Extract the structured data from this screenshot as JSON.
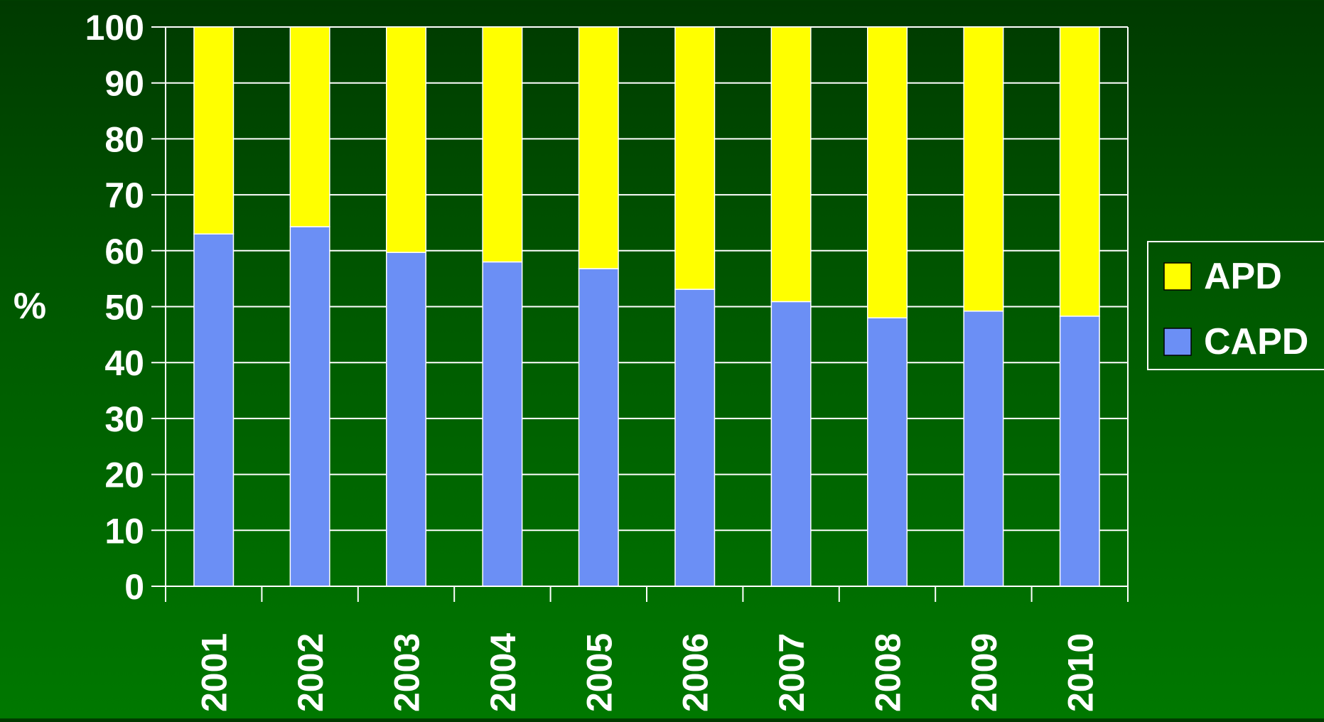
{
  "chart_data": {
    "type": "bar",
    "stacked": true,
    "categories": [
      "2001",
      "2002",
      "2003",
      "2004",
      "2005",
      "2006",
      "2007",
      "2008",
      "2009",
      "2010"
    ],
    "series": [
      {
        "name": "CAPD",
        "values": [
          63,
          64.3,
          59.7,
          58,
          56.8,
          53.1,
          50.9,
          48,
          49.2,
          48.3
        ],
        "color": "#6b8ff5"
      },
      {
        "name": "APD",
        "values": [
          37,
          35.7,
          40.3,
          42,
          43.2,
          46.9,
          49.1,
          52,
          50.8,
          51.7
        ],
        "color": "#ffff00"
      }
    ],
    "ylabel": "%",
    "xlabel": "",
    "ylim": [
      0,
      100
    ],
    "yticks": [
      "0",
      "10",
      "20",
      "30",
      "40",
      "50",
      "60",
      "70",
      "80",
      "90",
      "100"
    ],
    "grid": true,
    "legend": {
      "position": "right",
      "entries": [
        {
          "label": "APD",
          "color": "#ffff00"
        },
        {
          "label": "CAPD",
          "color": "#6b8ff5"
        }
      ]
    },
    "colors": {
      "background_top": "#003a00",
      "background_bottom": "#007800",
      "grid": "#ffffff",
      "text": "#ffffff"
    }
  }
}
